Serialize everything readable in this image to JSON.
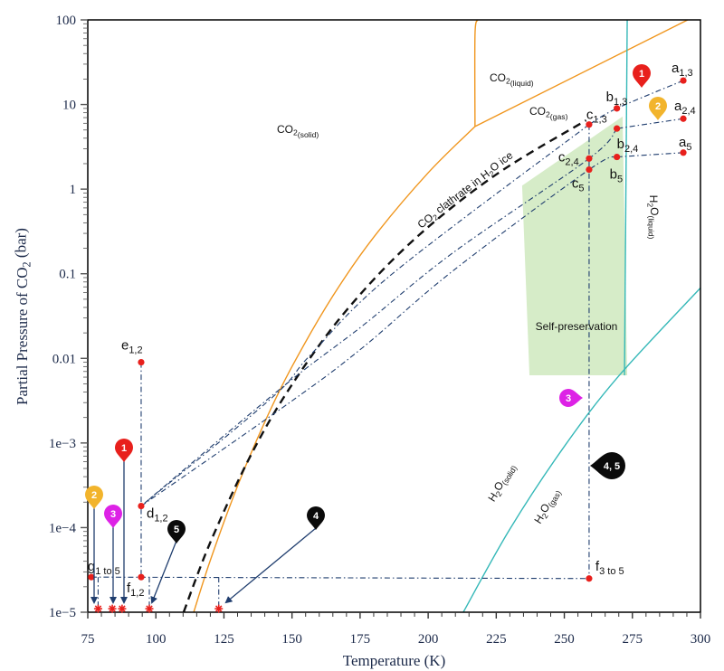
{
  "chart_data": {
    "type": "line",
    "title": "",
    "xlabel": "Temperature (K)",
    "ylabel": [
      [
        "Partial Pressure of CO",
        false
      ],
      [
        "2",
        true
      ],
      [
        " (bar)",
        false
      ]
    ],
    "xlim": [
      75,
      300
    ],
    "ylim": [
      1e-05,
      100
    ],
    "yscale": "log",
    "grid": false,
    "xticks": [
      75,
      100,
      125,
      150,
      175,
      200,
      225,
      250,
      275,
      300
    ],
    "xtick_labels": [
      "75",
      "100",
      "125",
      "150",
      "175",
      "200",
      "225",
      "250",
      "275",
      "300"
    ],
    "yticks": [
      100,
      10,
      1,
      0.1,
      0.01,
      0.001,
      0.0001,
      1e-05
    ],
    "ytick_labels": [
      "100",
      "10",
      "1",
      "0.1",
      "0.01",
      "1e−3",
      "1e−4",
      "1e−5"
    ],
    "curves": [
      {
        "color": "#f0961e",
        "style": "solid",
        "points": [
          [
            113.9,
            1e-05
          ],
          [
            120,
            4.1e-05
          ],
          [
            130,
            0.00031
          ],
          [
            140,
            0.00177
          ],
          [
            150,
            0.008
          ],
          [
            165,
            0.0546
          ],
          [
            180,
            0.27
          ],
          [
            200,
            1.56
          ],
          [
            217.2,
            5.5
          ]
        ]
      },
      {
        "color": "#f0961e",
        "style": "solid",
        "points": [
          [
            217.2,
            5.5
          ],
          [
            295.3,
            100
          ]
        ]
      },
      {
        "color": "#f0961e",
        "style": "solid",
        "points": [
          [
            217.2,
            5.5
          ],
          [
            217.2,
            67
          ],
          [
            218.2,
            100
          ]
        ]
      },
      {
        "color": "#111111",
        "style": "dashed",
        "points": [
          [
            110.2,
            1e-05
          ],
          [
            120,
            6.7e-05
          ],
          [
            135,
            0.00073
          ],
          [
            150,
            0.0049
          ],
          [
            170,
            0.037
          ],
          [
            195,
            0.257
          ],
          [
            225,
            1.49
          ],
          [
            258,
            6.5
          ]
        ]
      },
      {
        "color": "#35b8b8",
        "style": "solid",
        "points": [
          [
            212.9,
            1e-05
          ],
          [
            230,
            9.6e-05
          ],
          [
            250,
            0.00091
          ],
          [
            270,
            0.0062
          ],
          [
            300,
            0.068
          ]
        ]
      },
      {
        "color": "#35b8b8",
        "style": "solid",
        "points": [
          [
            273.1,
            100
          ],
          [
            272.1,
            0.0063
          ]
        ]
      }
    ],
    "shaded_region": {
      "label": "Self-preservation",
      "color": "#d6ecc8",
      "points": [
        [
          234.5,
          1.1
        ],
        [
          271.4,
          7.2
        ],
        [
          273.1,
          0.0063
        ],
        [
          237.2,
          0.0063
        ]
      ]
    },
    "region_labels": [
      [
        [
          "CO",
          false
        ],
        [
          "2",
          true
        ],
        [
          "(solid)",
          true
        ]
      ],
      [
        [
          "CO",
          false
        ],
        [
          "2",
          true
        ],
        [
          "(liquid)",
          true
        ]
      ],
      [
        [
          "CO",
          false
        ],
        [
          "2",
          true
        ],
        [
          "(gas)",
          true
        ]
      ],
      [
        [
          "CO",
          false
        ],
        [
          "2",
          true
        ],
        [
          " clathrate in H",
          false
        ],
        [
          "2",
          true
        ],
        [
          "O ice",
          false
        ]
      ],
      [
        [
          "H",
          false
        ],
        [
          "2",
          true
        ],
        [
          "O",
          false
        ],
        [
          "(liquid)",
          true
        ]
      ],
      [
        [
          "H",
          false
        ],
        [
          "2",
          true
        ],
        [
          "O",
          false
        ],
        [
          "(solid)",
          true
        ]
      ],
      [
        [
          "H",
          false
        ],
        [
          "2",
          true
        ],
        [
          "O",
          false
        ],
        [
          "(gas)",
          true
        ]
      ]
    ],
    "points": [
      {
        "label": "a",
        "sub": "1,3",
        "T": 293.7,
        "p": 19.2
      },
      {
        "label": "b",
        "sub": "1,3",
        "T": 269.3,
        "p": 9.0
      },
      {
        "label": "c",
        "sub": "1,3",
        "T": 259.1,
        "p": 5.8
      },
      {
        "label": "a",
        "sub": "2,4",
        "T": 293.7,
        "p": 6.8
      },
      {
        "label": "b",
        "sub": "2,4",
        "T": 269.3,
        "p": 5.2
      },
      {
        "label": "c",
        "sub": "2,4",
        "T": 259.1,
        "p": 2.3
      },
      {
        "label": "a",
        "sub": "5",
        "T": 293.7,
        "p": 2.7
      },
      {
        "label": "b",
        "sub": "5",
        "T": 269.3,
        "p": 2.4
      },
      {
        "label": "c",
        "sub": "5",
        "T": 259.1,
        "p": 1.7
      },
      {
        "label": "e",
        "sub": "1,2",
        "T": 94.6,
        "p": 0.009
      },
      {
        "label": "d",
        "sub": "1,2",
        "T": 94.6,
        "p": 0.00018
      },
      {
        "label": "f",
        "sub": "1,2",
        "T": 94.6,
        "p": 2.6e-05
      },
      {
        "label": "f",
        "sub": "3 to 5",
        "T": 259.1,
        "p": 2.5e-05
      },
      {
        "label": "g",
        "sub": "1 to 5",
        "T": 76.3,
        "p": 2.6e-05
      }
    ],
    "paths": [
      [
        [
          293.7,
          19.2
        ],
        [
          269.3,
          9.0
        ],
        [
          259.1,
          5.8
        ]
      ],
      [
        [
          293.7,
          6.8
        ],
        [
          269.3,
          5.2
        ]
      ],
      [
        [
          293.7,
          2.7
        ],
        [
          269.3,
          2.4
        ]
      ],
      [
        [
          259.1,
          5.8
        ],
        [
          186.7,
          0.099
        ],
        [
          156.8,
          0.011
        ],
        [
          142.5,
          0.0034
        ],
        [
          94.6,
          0.00018
        ]
      ],
      [
        [
          269.3,
          5.2
        ],
        [
          259.1,
          2.3
        ],
        [
          208.9,
          0.175
        ],
        [
          175.7,
          0.024
        ],
        [
          145.8,
          0.0044
        ],
        [
          94.6,
          0.00018
        ]
      ],
      [
        [
          269.3,
          2.4
        ],
        [
          259.1,
          1.7
        ],
        [
          208.9,
          0.107
        ],
        [
          175.7,
          0.0132
        ],
        [
          149.1,
          0.003
        ],
        [
          94.6,
          0.00018
        ]
      ],
      [
        [
          259.1,
          5.8
        ],
        [
          259.1,
          2.5e-05
        ]
      ],
      [
        [
          94.6,
          0.009
        ],
        [
          94.6,
          2.6e-05
        ]
      ],
      [
        [
          76.3,
          2.6e-05
        ],
        [
          259.1,
          2.5e-05
        ]
      ],
      [
        [
          78.8,
          2.6e-05
        ],
        [
          78.8,
          1.1e-05
        ]
      ],
      [
        [
          97.6,
          2.6e-05
        ],
        [
          97.6,
          1.1e-05
        ]
      ],
      [
        [
          123.1,
          2.6e-05
        ],
        [
          123.1,
          1.1e-05
        ]
      ]
    ],
    "stars": [
      78.8,
      84.0,
      87.6,
      97.6,
      123.1
    ],
    "stars_p": 1.1e-05,
    "point_color": "#e8201c",
    "path_color": "#1f3d6e",
    "markers": [
      {
        "label": "1",
        "color": "#e8201c"
      },
      {
        "label": "2",
        "color": "#f2b42c"
      },
      {
        "label": "1",
        "color": "#e8201c"
      },
      {
        "label": "2",
        "color": "#f2b42c"
      },
      {
        "label": "3",
        "color": "#dd22e6"
      },
      {
        "label": "5",
        "color": "#0a0a0a"
      },
      {
        "label": "4",
        "color": "#0a0a0a"
      },
      {
        "label": "3",
        "color": "#dd22e6"
      },
      {
        "label": "4, 5",
        "color": "#0a0a0a"
      }
    ]
  }
}
